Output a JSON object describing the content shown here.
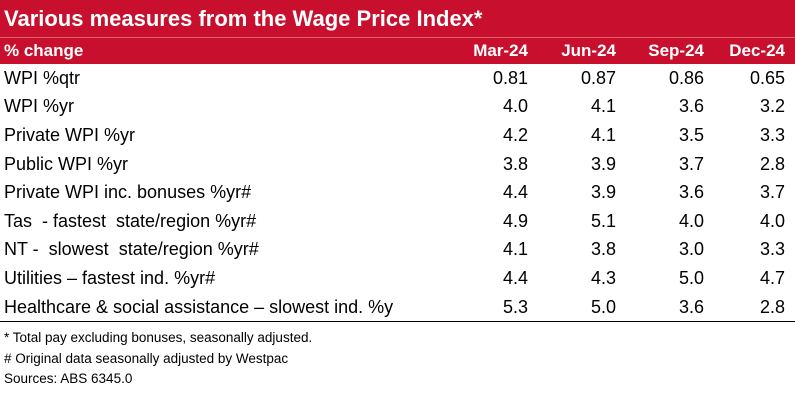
{
  "title": "Various measures from the Wage Price Index*",
  "header": {
    "label": "% change",
    "columns": [
      "Mar-24",
      "Jun-24",
      "Sep-24",
      "Dec-24"
    ]
  },
  "rows": [
    {
      "label": "WPI %qtr",
      "values": [
        "0.81",
        "0.87",
        "0.86",
        "0.65"
      ]
    },
    {
      "label": "WPI %yr",
      "values": [
        "4.0",
        "4.1",
        "3.6",
        "3.2"
      ]
    },
    {
      "label": "Private WPI %yr",
      "values": [
        "4.2",
        "4.1",
        "3.5",
        "3.3"
      ]
    },
    {
      "label": "Public WPI %yr",
      "values": [
        "3.8",
        "3.9",
        "3.7",
        "2.8"
      ]
    },
    {
      "label": "Private WPI inc. bonuses %yr#",
      "values": [
        "4.4",
        "3.9",
        "3.6",
        "3.7"
      ]
    },
    {
      "label": "Tas  - fastest  state/region %yr#",
      "values": [
        "4.9",
        "5.1",
        "4.0",
        "4.0"
      ]
    },
    {
      "label": "NT -  slowest  state/region %yr#",
      "values": [
        "4.1",
        "3.8",
        "3.0",
        "3.3"
      ]
    },
    {
      "label": "Utilities – fastest ind. %yr#",
      "values": [
        "4.4",
        "4.3",
        "5.0",
        "4.7"
      ]
    },
    {
      "label": "Healthcare & social assistance – slowest ind. %y",
      "values": [
        "5.3",
        "5.0",
        "3.6",
        "2.8"
      ]
    }
  ],
  "notes": [
    "* Total pay excluding bonuses, seasonally adjusted.",
    "# Original data seasonally adjusted by Westpac",
    "Sources: ABS 6345.0"
  ],
  "colors": {
    "header_bg": "#c8102e",
    "header_text": "#ffffff"
  }
}
